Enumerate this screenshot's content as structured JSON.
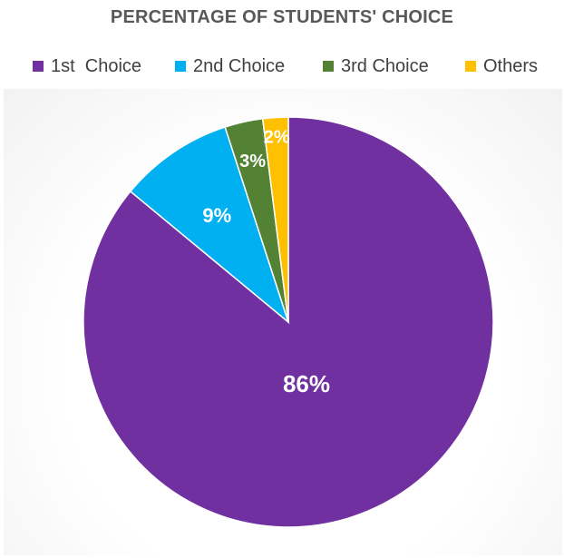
{
  "chart_data": {
    "type": "pie",
    "title": "PERCENTAGE OF STUDENTS' CHOICE",
    "categories": [
      "1st  Choice",
      "2nd Choice",
      "3rd Choice",
      "Others"
    ],
    "values": [
      86,
      9,
      3,
      2
    ],
    "data_labels": [
      "86%",
      "9%",
      "3%",
      "2%"
    ],
    "colors": [
      "#7030A0",
      "#00B0F0",
      "#548235",
      "#FFC000"
    ],
    "legend_position": "top"
  }
}
